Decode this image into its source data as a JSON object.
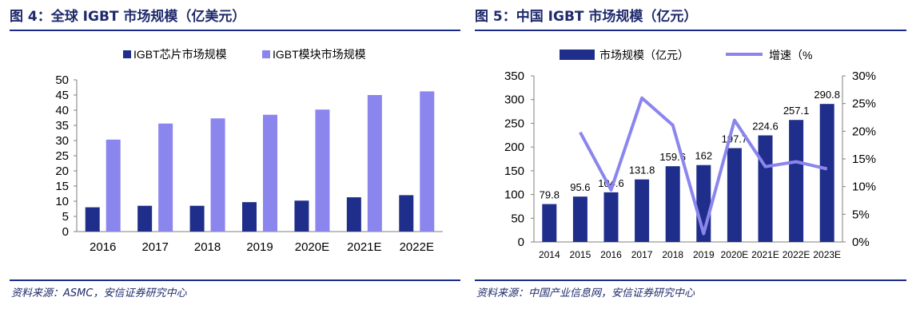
{
  "left": {
    "title": "图 4：全球 IGBT 市场规模（亿美元）",
    "source": "资料来源：ASMC，安信证券研究中心"
  },
  "right": {
    "title": "图 5：中国 IGBT 市场规模（亿元）",
    "source": "资料来源：中国产业信息网，安信证券研究中心"
  },
  "colors": {
    "navy": "#1f2e8a",
    "lavender": "#8b85ee",
    "rule": "#1a2a8a",
    "title": "#1f2a6b"
  },
  "chart_data": [
    {
      "type": "bar",
      "categories": [
        "2016",
        "2017",
        "2018",
        "2019",
        "2020E",
        "2021E",
        "2022E"
      ],
      "series": [
        {
          "name": "IGBT芯片市场规模",
          "values": [
            8.0,
            8.5,
            8.5,
            9.7,
            10.2,
            11.3,
            12.0
          ],
          "color": "#1f2e8a"
        },
        {
          "name": "IGBT模块市场规模",
          "values": [
            30.3,
            35.6,
            37.3,
            38.5,
            40.2,
            45.0,
            46.2
          ],
          "color": "#8b85ee"
        }
      ],
      "y_ticks": [
        "0",
        "5",
        "10",
        "15",
        "20",
        "25",
        "30",
        "35",
        "40",
        "45",
        "50"
      ],
      "ylim": [
        0,
        50
      ],
      "legend_position": "top-center",
      "grid": false
    },
    {
      "type": "bar",
      "categories": [
        "2014",
        "2015",
        "2016",
        "2017",
        "2018",
        "2019",
        "2020E",
        "2021E",
        "2022E",
        "2023E"
      ],
      "series": [
        {
          "name": "市场规模（亿元）",
          "type": "bar",
          "values": [
            79.8,
            95.6,
            104.6,
            131.8,
            159.6,
            162,
            197.7,
            224.6,
            257.1,
            290.8
          ],
          "color": "#1f2e8a",
          "axis": "left"
        },
        {
          "name": "增速（%",
          "type": "line",
          "values": [
            null,
            19.8,
            9.4,
            26.0,
            21.1,
            1.5,
            22.0,
            13.6,
            14.5,
            13.2
          ],
          "color": "#8b85ee",
          "axis": "right"
        }
      ],
      "data_labels": [
        "79.8",
        "95.6",
        "104.6",
        "131.8",
        "159.6",
        "162",
        "197.7",
        "224.6",
        "257.1",
        "290.8"
      ],
      "y_ticks": [
        "0",
        "50",
        "100",
        "150",
        "200",
        "250",
        "300",
        "350"
      ],
      "y2_ticks": [
        "0%",
        "5%",
        "10%",
        "15%",
        "20%",
        "25%",
        "30%"
      ],
      "ylim": [
        0,
        350
      ],
      "y2lim": [
        0,
        30
      ],
      "legend_position": "top-center",
      "grid": false
    }
  ]
}
